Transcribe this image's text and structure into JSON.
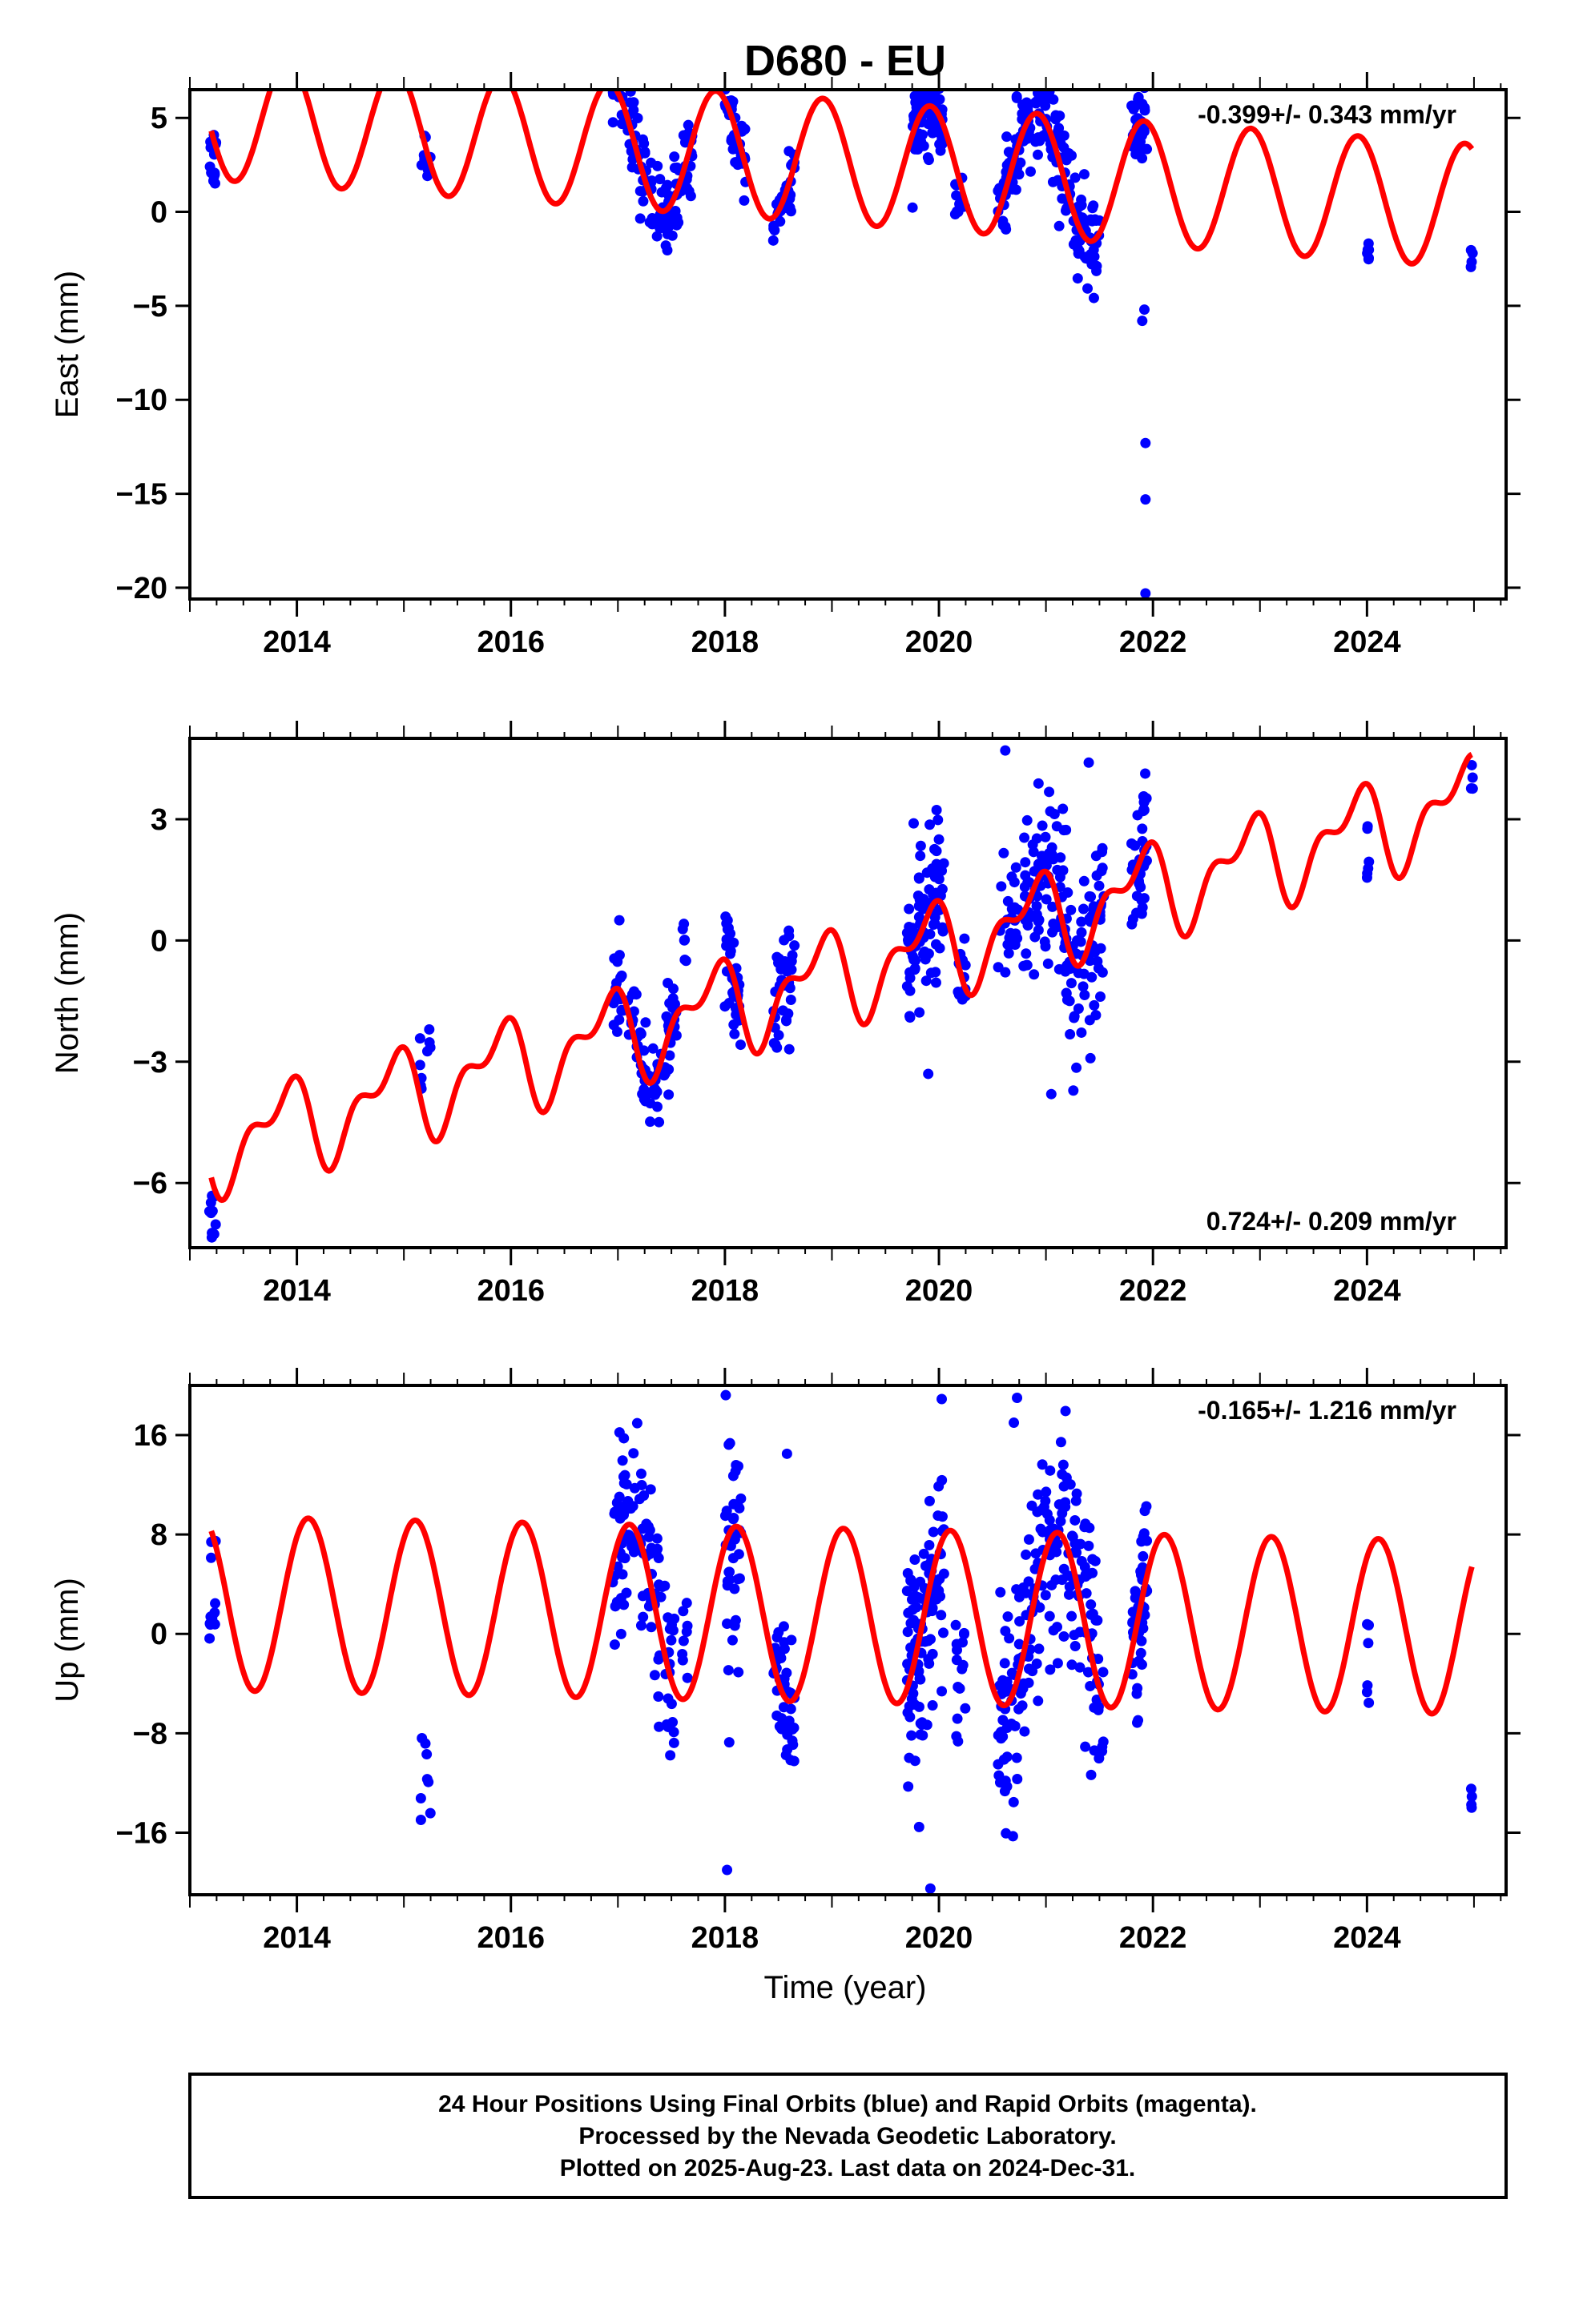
{
  "chart_data": {
    "type": "scatter",
    "title": "D680 - EU",
    "xlabel": "Time (year)",
    "xlim": [
      2013.0,
      2025.3
    ],
    "x_ticks": [
      2014,
      2016,
      2018,
      2020,
      2022,
      2024
    ],
    "x_tick_labels": [
      "2014",
      "2016",
      "2018",
      "2020",
      "2022",
      "2024"
    ],
    "colors": {
      "final_orbits_points": "#0000ff",
      "model_fit": "#ff0000",
      "frame": "#000000"
    },
    "grid": false,
    "panels": [
      {
        "id": "east",
        "ylabel": "East (mm)",
        "ylim": [
          -20.6,
          6.5
        ],
        "y_ticks": [
          5,
          0,
          -5,
          -10,
          -15,
          -20
        ],
        "y_tick_labels": [
          "5",
          "0",
          "−5",
          "−10",
          "−15",
          "−20"
        ],
        "rate_text": "-0.399+/- 0.343 mm/yr",
        "rate_position": "top-right",
        "model": {
          "offset": 2.7,
          "rate": -0.399,
          "ref_year": 2019.0,
          "annual_amp": 3.3,
          "annual_phase": 2.1,
          "semiannual_amp": 0.0,
          "semiannual_phase": 0.0
        },
        "point_groups": [
          {
            "start": 2013.18,
            "end": 2013.25,
            "center": 2.5,
            "spread": 1.6,
            "count": 14
          },
          {
            "start": 2015.15,
            "end": 2015.25,
            "center": 3.0,
            "spread": 1.4,
            "count": 10
          },
          {
            "start": 2016.95,
            "end": 2017.7,
            "follow_model": true,
            "jitter": 1.5,
            "count": 110
          },
          {
            "start": 2018.0,
            "end": 2018.2,
            "follow_model": true,
            "jitter": 1.2,
            "count": 40
          },
          {
            "start": 2018.45,
            "end": 2018.65,
            "follow_model": true,
            "jitter": 1.0,
            "count": 30
          },
          {
            "start": 2019.75,
            "end": 2020.05,
            "follow_model": true,
            "jitter": 1.4,
            "count": 90
          },
          {
            "start": 2020.15,
            "end": 2020.25,
            "center": 0.8,
            "spread": 1.2,
            "count": 12
          },
          {
            "start": 2020.55,
            "end": 2021.5,
            "follow_model": true,
            "jitter": 1.5,
            "count": 180
          },
          {
            "start": 2021.8,
            "end": 2021.95,
            "follow_model": true,
            "jitter": 1.6,
            "count": 35
          },
          {
            "start": 2024.0,
            "end": 2024.02,
            "center": -1.5,
            "spread": 1.4,
            "count": 6
          },
          {
            "start": 2024.97,
            "end": 2024.99,
            "center": -2.5,
            "spread": 0.6,
            "count": 4
          }
        ],
        "explicit_points": [
          [
            2021.93,
            -12.3
          ],
          [
            2021.93,
            -15.3
          ],
          [
            2021.93,
            -20.3
          ],
          [
            2021.9,
            -5.8
          ],
          [
            2021.92,
            -5.2
          ]
        ]
      },
      {
        "id": "north",
        "ylabel": "North (mm)",
        "ylim": [
          -7.6,
          5.0
        ],
        "y_ticks": [
          3,
          0,
          -3,
          -6
        ],
        "y_tick_labels": [
          "3",
          "0",
          "−3",
          "−6"
        ],
        "rate_text": "0.724+/- 0.209 mm/yr",
        "rate_position": "bottom-right",
        "model": {
          "offset": -0.9,
          "rate": 0.724,
          "ref_year": 2019.0,
          "annual_amp": 0.95,
          "annual_phase": 2.4,
          "semiannual_amp": 0.55,
          "semiannual_phase": 1.2
        },
        "point_groups": [
          {
            "start": 2013.18,
            "end": 2013.25,
            "center": -6.8,
            "spread": 0.6,
            "count": 10
          },
          {
            "start": 2015.15,
            "end": 2015.25,
            "center": -3.0,
            "spread": 0.9,
            "count": 10
          },
          {
            "start": 2016.95,
            "end": 2017.55,
            "follow_model": true,
            "jitter": 0.7,
            "count": 100
          },
          {
            "start": 2017.6,
            "end": 2017.65,
            "center": 0.0,
            "spread": 0.6,
            "count": 6
          },
          {
            "start": 2018.0,
            "end": 2018.15,
            "follow_model": true,
            "jitter": 0.8,
            "count": 35
          },
          {
            "start": 2018.45,
            "end": 2018.65,
            "follow_model": true,
            "jitter": 0.9,
            "count": 35
          },
          {
            "start": 2019.7,
            "end": 2020.05,
            "follow_model": true,
            "jitter": 1.2,
            "count": 90
          },
          {
            "start": 2020.15,
            "end": 2020.25,
            "center": -0.6,
            "spread": 1.0,
            "count": 12
          },
          {
            "start": 2020.55,
            "end": 2021.55,
            "follow_model": true,
            "jitter": 1.4,
            "count": 180
          },
          {
            "start": 2021.8,
            "end": 2021.95,
            "follow_model": true,
            "jitter": 1.3,
            "count": 35
          },
          {
            "start": 2024.0,
            "end": 2024.02,
            "center": 2.0,
            "spread": 1.0,
            "count": 6
          },
          {
            "start": 2024.97,
            "end": 2024.99,
            "center": 4.2,
            "spread": 0.5,
            "count": 4
          }
        ],
        "explicit_points": [
          [
            2020.62,
            4.7
          ],
          [
            2021.4,
            4.4
          ],
          [
            2020.0,
            2.5
          ],
          [
            2021.05,
            -3.8
          ],
          [
            2019.9,
            -3.3
          ]
        ]
      },
      {
        "id": "up",
        "ylabel": "Up (mm)",
        "ylim": [
          -21.0,
          20.0
        ],
        "y_ticks": [
          16,
          8,
          0,
          -8,
          -16
        ],
        "y_tick_labels": [
          "16",
          "8",
          "0",
          "−8",
          "−16"
        ],
        "rate_text": "-0.165+/- 1.216 mm/yr",
        "rate_position": "top-right",
        "model": {
          "offset": 1.5,
          "rate": -0.165,
          "ref_year": 2019.0,
          "annual_amp": 7.0,
          "annual_phase": 0.9,
          "semiannual_amp": 0.0,
          "semiannual_phase": 0.0
        },
        "point_groups": [
          {
            "start": 2013.18,
            "end": 2013.25,
            "center": 3.5,
            "spread": 4.0,
            "count": 12
          },
          {
            "start": 2015.15,
            "end": 2015.25,
            "center": -12.0,
            "spread": 4.0,
            "count": 8
          },
          {
            "start": 2016.95,
            "end": 2017.55,
            "follow_model": true,
            "jitter": 5.0,
            "count": 110
          },
          {
            "start": 2017.6,
            "end": 2017.65,
            "center": 0.0,
            "spread": 4.0,
            "count": 8
          },
          {
            "start": 2018.0,
            "end": 2018.15,
            "follow_model": true,
            "jitter": 6.5,
            "count": 40
          },
          {
            "start": 2018.45,
            "end": 2018.65,
            "follow_model": true,
            "jitter": 4.5,
            "count": 40
          },
          {
            "start": 2019.7,
            "end": 2020.05,
            "follow_model": true,
            "jitter": 6.0,
            "count": 110
          },
          {
            "start": 2020.15,
            "end": 2020.25,
            "center": -4.0,
            "spread": 5.0,
            "count": 15
          },
          {
            "start": 2020.55,
            "end": 2021.55,
            "follow_model": true,
            "jitter": 6.0,
            "count": 200
          },
          {
            "start": 2021.8,
            "end": 2021.95,
            "follow_model": true,
            "jitter": 5.0,
            "count": 40
          },
          {
            "start": 2024.0,
            "end": 2024.02,
            "center": -3.0,
            "spread": 4.0,
            "count": 6
          },
          {
            "start": 2024.97,
            "end": 2024.99,
            "center": -12.5,
            "spread": 1.5,
            "count": 4
          }
        ],
        "explicit_points": [
          [
            2020.73,
            19.0
          ],
          [
            2019.92,
            -20.5
          ],
          [
            2018.02,
            -19.0
          ],
          [
            2020.7,
            17.0
          ],
          [
            2018.58,
            14.5
          ]
        ]
      }
    ]
  },
  "footer": {
    "line1": "24 Hour Positions Using Final Orbits (blue) and Rapid Orbits (magenta).",
    "line2": "Processed by the Nevada Geodetic Laboratory.",
    "line3": "Plotted on 2025-Aug-23. Last data on 2024-Dec-31."
  }
}
